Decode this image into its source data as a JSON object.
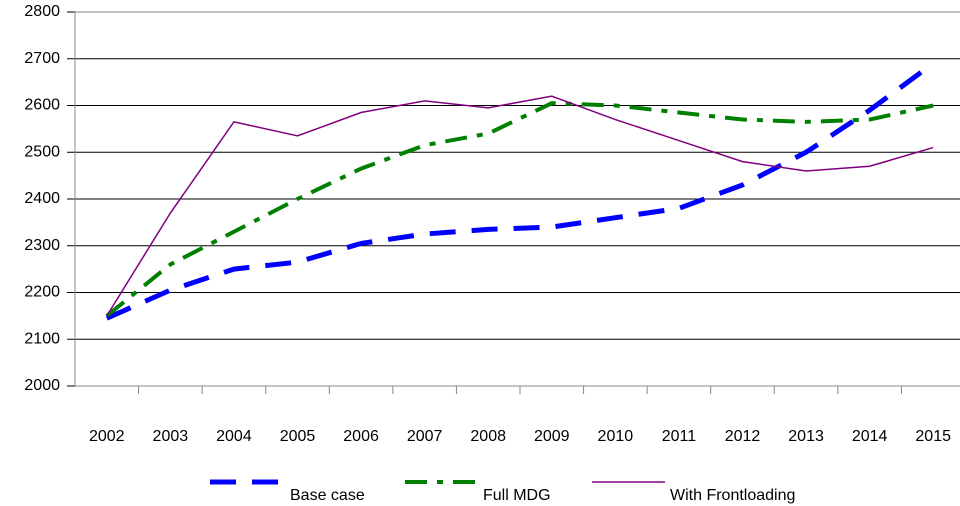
{
  "chart_data": {
    "type": "line",
    "categories": [
      "2002",
      "2003",
      "2004",
      "2005",
      "2006",
      "2007",
      "2008",
      "2009",
      "2010",
      "2011",
      "2012",
      "2013",
      "2014",
      "2015"
    ],
    "series": [
      {
        "name": "Base case",
        "color": "#0000ff",
        "values": [
          2145,
          2205,
          2250,
          2265,
          2305,
          2325,
          2335,
          2340,
          2360,
          2380,
          2430,
          2500,
          2590,
          2690
        ]
      },
      {
        "name": "Full MDG",
        "color": "#008000",
        "values": [
          2150,
          2260,
          2330,
          2400,
          2465,
          2515,
          2540,
          2605,
          2600,
          2585,
          2570,
          2565,
          2570,
          2600
        ]
      },
      {
        "name": "With Frontloading",
        "color": "#800080",
        "values": [
          2150,
          2370,
          2565,
          2535,
          2585,
          2610,
          2595,
          2620,
          2570,
          2525,
          2480,
          2460,
          2470,
          2510
        ]
      }
    ],
    "ylim": [
      2000,
      2800
    ],
    "yticks": [
      2000,
      2100,
      2200,
      2300,
      2400,
      2500,
      2600,
      2700,
      2800
    ],
    "grid": true,
    "legend": "bottom"
  }
}
